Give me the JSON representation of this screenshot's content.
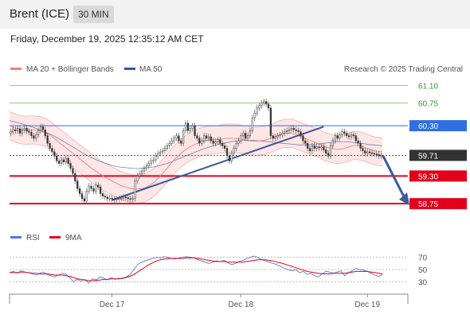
{
  "header": {
    "instrument": "Brent (ICE)",
    "timeframe": "30 MIN",
    "datetime": "Friday, December 19, 2025 12:35:12 AM CET",
    "copyright": "Research © 2025 Trading Central"
  },
  "legend": {
    "ma20_label": "MA 20 + Bollinger Bands",
    "ma50_label": "MA 50",
    "rsi_label": "RSI",
    "ma9_label": "9MA"
  },
  "colors": {
    "up": "#2e9e2e",
    "down": "#d9261c",
    "ma20": "#f08080",
    "ma50": "#3355a0",
    "band_fill": "#fde0e0",
    "resistance_green": "#8fcf6f",
    "support_red": "#e3001b",
    "pivot_blue": "#2f6fe0",
    "trend": "#3d5a9a",
    "current_price": "#333333",
    "rsi": "#5577dd",
    "rsi_ma": "#e3001b"
  },
  "chart_data": [
    {
      "type": "candlestick",
      "title": "Brent (ICE) 30 MIN",
      "x_ticks": [
        "Dec 17",
        "Dec 18",
        "Dec 19"
      ],
      "ylim": [
        58.5,
        61.25
      ],
      "levels": [
        {
          "value": 61.1,
          "label": "61.10",
          "kind": "resistance"
        },
        {
          "value": 60.75,
          "label": "60.75",
          "kind": "resistance"
        },
        {
          "value": 60.3,
          "label": "60.30",
          "kind": "pivot"
        },
        {
          "value": 59.71,
          "label": "59.71",
          "kind": "current"
        },
        {
          "value": 59.3,
          "label": "59.30",
          "kind": "support"
        },
        {
          "value": 58.75,
          "label": "58.75",
          "kind": "support"
        }
      ],
      "closes": [
        60.18,
        60.22,
        60.2,
        60.24,
        60.15,
        60.21,
        60.25,
        60.19,
        60.17,
        60.1,
        60.05,
        60.12,
        60.2,
        60.28,
        60.22,
        60.1,
        59.95,
        59.85,
        59.78,
        59.7,
        59.6,
        59.55,
        59.62,
        59.58,
        59.65,
        59.55,
        59.45,
        59.35,
        59.2,
        59.05,
        58.95,
        58.85,
        58.8,
        59.0,
        59.1,
        59.05,
        59.0,
        59.12,
        59.08,
        58.95,
        58.9,
        58.88,
        58.85,
        58.86,
        58.84,
        58.83,
        58.84,
        58.85,
        58.86,
        58.88,
        58.87,
        58.85,
        58.84,
        58.85,
        59.2,
        59.3,
        59.35,
        59.4,
        59.45,
        59.5,
        59.55,
        59.6,
        59.62,
        59.7,
        59.75,
        59.78,
        59.8,
        59.85,
        59.9,
        59.95,
        60.0,
        60.05,
        60.1,
        60.0,
        59.95,
        60.2,
        60.35,
        60.2,
        60.25,
        60.3,
        60.1,
        60.05,
        59.95,
        60.0,
        60.1,
        60.05,
        60.08,
        60.0,
        59.95,
        59.98,
        60.02,
        59.95,
        59.9,
        59.85,
        59.7,
        59.6,
        59.75,
        59.85,
        59.95,
        60.0,
        60.1,
        60.15,
        60.05,
        60.1,
        60.2,
        60.45,
        60.55,
        60.65,
        60.7,
        60.75,
        60.78,
        60.73,
        60.65,
        60.1,
        60.05,
        60.08,
        60.1,
        60.12,
        60.15,
        60.18,
        60.2,
        60.22,
        60.25,
        60.22,
        60.2,
        60.18,
        60.1,
        60.0,
        59.95,
        59.85,
        59.8,
        59.9,
        59.85,
        59.88,
        59.86,
        59.88,
        59.82,
        59.75,
        59.7,
        59.9,
        60.0,
        60.1,
        60.05,
        60.12,
        60.18,
        60.15,
        60.1,
        60.08,
        60.12,
        60.1,
        60.0,
        59.95,
        59.85,
        59.8,
        59.75,
        59.78,
        59.76,
        59.75,
        59.74,
        59.73,
        59.7,
        59.71
      ],
      "ma20": [
        60.3,
        60.27,
        60.24,
        60.22,
        60.21,
        60.21,
        60.22,
        60.21,
        60.2,
        60.18,
        60.14,
        60.09,
        60.03,
        59.97,
        59.91,
        59.85,
        59.79,
        59.73,
        59.67,
        59.61,
        59.55,
        59.49,
        59.43,
        59.38,
        59.33,
        59.28,
        59.24,
        59.2,
        59.16,
        59.12,
        59.09,
        59.07,
        59.05,
        59.04,
        59.04,
        59.05,
        59.08,
        59.12,
        59.18,
        59.25,
        59.33,
        59.42,
        59.51,
        59.6,
        59.68,
        59.75,
        59.81,
        59.86,
        59.9,
        59.94,
        59.97,
        59.99,
        60.01,
        60.02,
        60.02,
        60.03,
        60.04,
        60.05,
        60.05,
        60.05,
        60.04,
        60.03,
        60.02,
        60.0,
        59.99,
        59.99,
        60.0,
        60.01,
        60.03,
        60.06,
        60.09,
        60.12,
        60.14,
        60.15,
        60.15,
        60.13,
        60.1,
        60.07,
        60.04,
        60.01,
        59.98,
        59.95,
        59.92,
        59.88,
        59.86,
        59.84,
        59.83,
        59.83,
        59.85,
        59.87,
        59.9,
        59.91,
        59.9,
        59.88,
        59.85,
        59.82,
        59.8,
        59.79,
        59.78
      ],
      "ma50": [
        60.4,
        60.38,
        60.35,
        60.32,
        60.29,
        60.26,
        60.22,
        60.18,
        60.14,
        60.09,
        60.04,
        59.98,
        59.92,
        59.86,
        59.8,
        59.74,
        59.69,
        59.64,
        59.6,
        59.56,
        59.53,
        59.5,
        59.48,
        59.47,
        59.46,
        59.45,
        59.45,
        59.46,
        59.47,
        59.48,
        59.5,
        59.53,
        59.56,
        59.6,
        59.64,
        59.68,
        59.72,
        59.76,
        59.8,
        59.84,
        59.87,
        59.9,
        59.93,
        59.95,
        59.97,
        59.99,
        60.0,
        60.01,
        60.01,
        60.01,
        60.0,
        59.99,
        59.98,
        59.97,
        59.96,
        59.95,
        59.94,
        59.93,
        59.92,
        59.92,
        59.92,
        59.93,
        59.94,
        59.95,
        59.96,
        59.97,
        59.98,
        59.98,
        59.98,
        59.97,
        59.96,
        59.95,
        59.93,
        59.92,
        59.91,
        59.9
      ],
      "band_width": 0.28
    },
    {
      "type": "line",
      "title": "RSI",
      "ylim": [
        10,
        85
      ],
      "y_ticks": [
        70,
        50,
        30
      ],
      "series": [
        {
          "name": "RSI",
          "values": [
            45,
            47,
            44,
            48,
            46,
            45,
            43,
            41,
            44,
            46,
            42,
            40,
            38,
            41,
            44,
            42,
            37,
            30,
            34,
            31,
            34,
            28,
            35,
            33,
            38,
            36,
            33,
            37,
            34,
            36,
            35,
            38,
            42,
            50,
            58,
            62,
            64,
            66,
            68,
            70,
            69,
            71,
            70,
            68,
            67,
            69,
            70,
            71,
            70,
            69,
            66,
            64,
            62,
            60,
            62,
            64,
            63,
            65,
            61,
            58,
            60,
            63,
            65,
            68,
            70,
            72,
            69,
            66,
            64,
            62,
            60,
            58,
            55,
            52,
            50,
            48,
            50,
            45,
            47,
            42,
            44,
            40,
            38,
            43,
            47,
            46,
            44,
            46,
            48,
            40,
            45,
            48,
            52,
            50,
            49,
            47,
            44,
            41,
            39,
            42
          ]
        },
        {
          "name": "9MA",
          "values": [
            45,
            45,
            45,
            46,
            46,
            45,
            44,
            44,
            43,
            43,
            43,
            42,
            41,
            41,
            41,
            40,
            39,
            37,
            35,
            34,
            33,
            32,
            32,
            32,
            33,
            34,
            34,
            35,
            35,
            35,
            36,
            37,
            39,
            42,
            46,
            50,
            54,
            58,
            61,
            64,
            66,
            67,
            68,
            68,
            68,
            68,
            68,
            69,
            69,
            69,
            68,
            67,
            66,
            65,
            64,
            63,
            63,
            63,
            62,
            62,
            62,
            62,
            62,
            63,
            64,
            65,
            66,
            66,
            66,
            65,
            64,
            62,
            61,
            59,
            57,
            55,
            53,
            51,
            49,
            47,
            46,
            45,
            44,
            43,
            43,
            43,
            44,
            44,
            44,
            44,
            45,
            46,
            47,
            47,
            47,
            47,
            46,
            45,
            44,
            43
          ]
        }
      ]
    }
  ]
}
